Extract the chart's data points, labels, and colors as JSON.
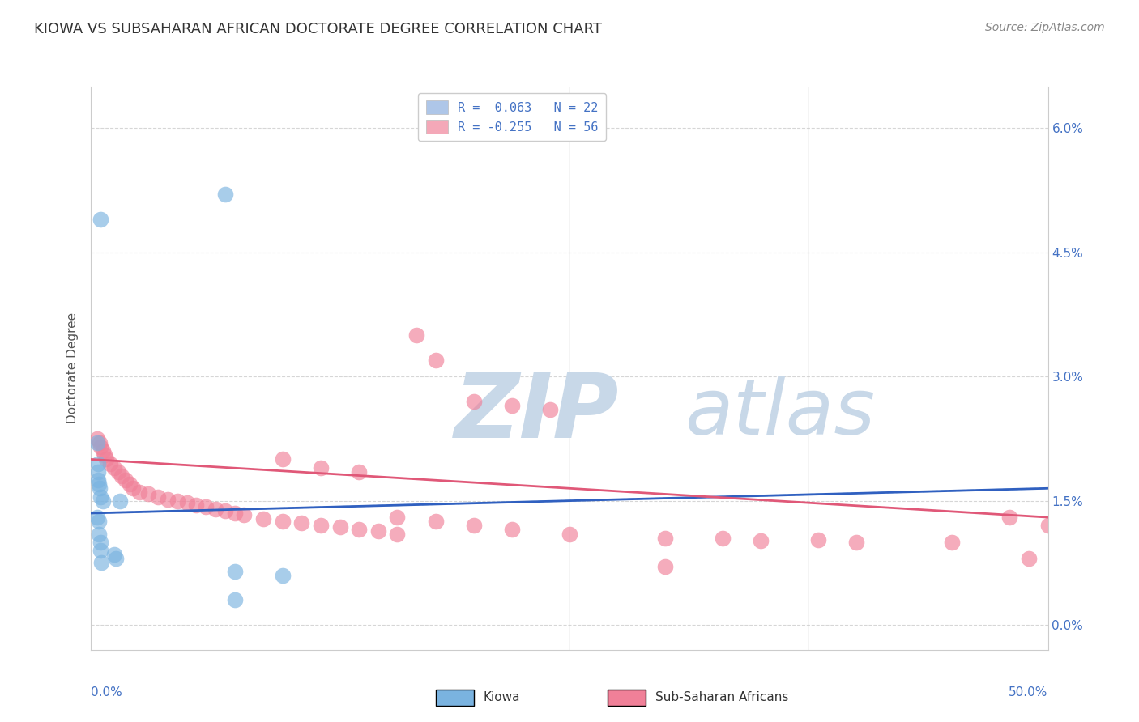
{
  "title": "KIOWA VS SUBSAHARAN AFRICAN DOCTORATE DEGREE CORRELATION CHART",
  "source": "Source: ZipAtlas.com",
  "ylabel": "Doctorate Degree",
  "ytick_vals": [
    0.0,
    1.5,
    3.0,
    4.5,
    6.0
  ],
  "ytick_labels": [
    "0.0%",
    "1.5%",
    "3.0%",
    "4.5%",
    "6.0%"
  ],
  "xrange": [
    0.0,
    50.0
  ],
  "yrange": [
    -0.3,
    6.5
  ],
  "legend_label1": "R =  0.063   N = 22",
  "legend_label2": "R = -0.255   N = 56",
  "legend_color1": "#aec6e8",
  "legend_color2": "#f4a8b8",
  "kiowa_color": "#7ab3e0",
  "subsaharan_color": "#f08098",
  "kiowa_trend_color": "#3060c0",
  "subsaharan_trend_color": "#e05878",
  "kiowa_dashed_color": "#90c0e8",
  "kiowa_x": [
    0.5,
    7.0,
    0.3,
    0.35,
    0.4,
    0.45,
    0.5,
    0.6,
    1.5,
    0.3,
    0.4,
    0.5,
    0.5,
    1.2,
    1.3,
    7.5,
    10.0,
    7.5,
    0.35,
    0.38,
    0.42,
    0.55
  ],
  "kiowa_y": [
    4.9,
    5.2,
    2.2,
    1.85,
    1.7,
    1.65,
    1.55,
    1.5,
    1.5,
    1.3,
    1.25,
    1.0,
    0.9,
    0.85,
    0.8,
    0.65,
    0.6,
    0.3,
    1.95,
    1.75,
    1.1,
    0.75
  ],
  "ssa_x": [
    0.3,
    0.45,
    0.5,
    0.6,
    0.7,
    0.8,
    1.0,
    1.2,
    1.4,
    1.6,
    1.8,
    2.0,
    2.2,
    2.5,
    3.0,
    3.5,
    4.0,
    4.5,
    5.0,
    5.5,
    6.0,
    6.5,
    7.0,
    7.5,
    8.0,
    9.0,
    10.0,
    11.0,
    12.0,
    13.0,
    14.0,
    15.0,
    16.0,
    17.0,
    18.0,
    20.0,
    22.0,
    24.0,
    10.0,
    12.0,
    14.0,
    16.0,
    18.0,
    20.0,
    22.0,
    25.0,
    30.0,
    35.0,
    40.0,
    45.0,
    48.0,
    50.0,
    49.0,
    30.0,
    33.0,
    38.0
  ],
  "ssa_y": [
    2.25,
    2.2,
    2.15,
    2.1,
    2.05,
    2.0,
    1.95,
    1.9,
    1.85,
    1.8,
    1.75,
    1.7,
    1.65,
    1.6,
    1.58,
    1.55,
    1.52,
    1.5,
    1.48,
    1.45,
    1.43,
    1.4,
    1.38,
    1.35,
    1.33,
    1.28,
    1.25,
    1.23,
    1.2,
    1.18,
    1.15,
    1.13,
    1.1,
    3.5,
    3.2,
    2.7,
    2.65,
    2.6,
    2.0,
    1.9,
    1.85,
    1.3,
    1.25,
    1.2,
    1.15,
    1.1,
    1.05,
    1.02,
    1.0,
    1.0,
    1.3,
    1.2,
    0.8,
    0.7,
    1.05,
    1.03
  ],
  "background_color": "#ffffff",
  "grid_color": "#cccccc",
  "watermark_zip_color": "#c8d8e8",
  "watermark_atlas_color": "#c8d8e8",
  "title_fontsize": 13,
  "axis_label_fontsize": 11,
  "tick_fontsize": 11,
  "legend_fontsize": 11,
  "source_fontsize": 10
}
